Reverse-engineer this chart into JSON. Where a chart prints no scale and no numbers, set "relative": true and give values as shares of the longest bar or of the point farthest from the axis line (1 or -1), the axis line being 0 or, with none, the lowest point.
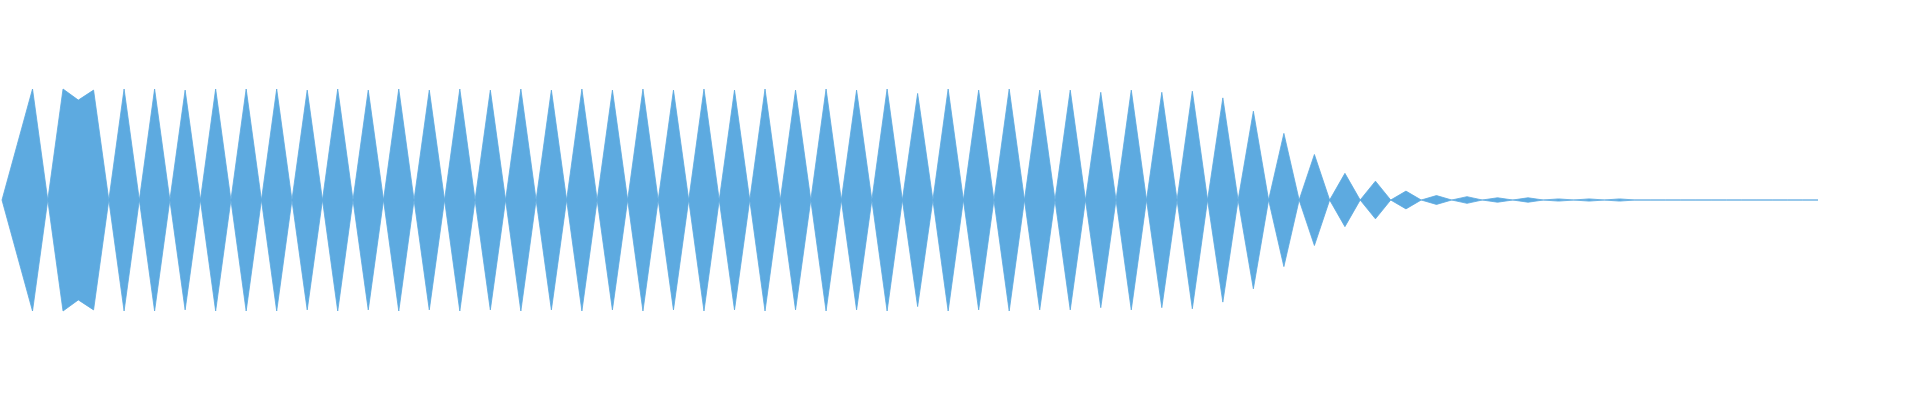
{
  "chart_data": {
    "type": "area",
    "relative": true,
    "categories": [
      null,
      null,
      null,
      null,
      null,
      null,
      null,
      null,
      null,
      null,
      null,
      null,
      null,
      null,
      null,
      null,
      null,
      null,
      null,
      null,
      null,
      null,
      null,
      null,
      null,
      null,
      null,
      null,
      null,
      null,
      null,
      null,
      null,
      null,
      null,
      null,
      null,
      null,
      null,
      null,
      null,
      null,
      null,
      null,
      null,
      null,
      null,
      null,
      null,
      null,
      null,
      null,
      null,
      null,
      null,
      null,
      null,
      null,
      null,
      null,
      null,
      null,
      null,
      null,
      null,
      null,
      null,
      null,
      null,
      null,
      null,
      null,
      null,
      null,
      null,
      null,
      null,
      null,
      null,
      null,
      null,
      null,
      null,
      null,
      null,
      null,
      null,
      null,
      null,
      null,
      null,
      null,
      null,
      null,
      null,
      null,
      null,
      null,
      null,
      null,
      null,
      null,
      null,
      null,
      null,
      null,
      null,
      null,
      null,
      null,
      null,
      null,
      null,
      null,
      null,
      null,
      null,
      null,
      null,
      null
    ],
    "series": [
      {
        "color": "#5daae0",
        "values": [
          0,
          0.5,
          1,
          0,
          1,
          0.9,
          0.99,
          0,
          1,
          0,
          1,
          0,
          0.99,
          0,
          1,
          0,
          1,
          0,
          1,
          0,
          0.99,
          0,
          1,
          0,
          0.99,
          0,
          1,
          0,
          0.99,
          0,
          1,
          0,
          0.99,
          0,
          1,
          0,
          0.99,
          0,
          1,
          0,
          0.99,
          0,
          1,
          0,
          0.99,
          0,
          1,
          0,
          0.99,
          0,
          1,
          0,
          0.99,
          0,
          1,
          0,
          0.99,
          0,
          1,
          0,
          0.96,
          0,
          1,
          0,
          0.99,
          0,
          1,
          0,
          0.99,
          0,
          0.99,
          0,
          0.97,
          0,
          0.99,
          0,
          0.97,
          0,
          0.98,
          0,
          0.92,
          0,
          0.8,
          0,
          0.6,
          0,
          0.41,
          0,
          0.24,
          0,
          0.17,
          0,
          0.08,
          0,
          0.04,
          0,
          0.03,
          0,
          0.02,
          0,
          0.02,
          0,
          0.01,
          0,
          0.01,
          0,
          0.01,
          0,
          0,
          0,
          0,
          0,
          0,
          0,
          0,
          0,
          0,
          0,
          0,
          0
        ]
      }
    ]
  }
}
